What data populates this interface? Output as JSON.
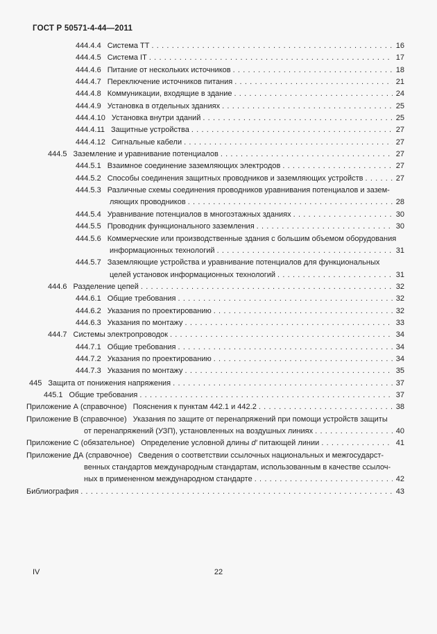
{
  "page": {
    "header": "ГОСТ Р 50571-4-44—2011",
    "footer_left": "IV",
    "footer_center": "22"
  },
  "colors": {
    "background": "#f7f7f7",
    "text": "#222222"
  },
  "toc": {
    "entries": [
      {
        "label": "444.4.4",
        "lines": [
          "Система ТТ"
        ],
        "page": "16",
        "indent": "l2",
        "cont": "c2"
      },
      {
        "label": "444.4.5",
        "lines": [
          "Система IT"
        ],
        "page": "17",
        "indent": "l2",
        "cont": "c2"
      },
      {
        "label": "444.4.6",
        "lines": [
          "Питание от нескольких источников"
        ],
        "page": "18",
        "indent": "l2",
        "cont": "c2"
      },
      {
        "label": "444.4.7",
        "lines": [
          "Переключение источников питания"
        ],
        "page": "21",
        "indent": "l2",
        "cont": "c2"
      },
      {
        "label": "444.4.8",
        "lines": [
          "Коммуникации, входящие в здание"
        ],
        "page": "24",
        "indent": "l2",
        "cont": "c2"
      },
      {
        "label": "444.4.9",
        "lines": [
          "Установка в отдельных зданиях"
        ],
        "page": "25",
        "indent": "l2",
        "cont": "c2"
      },
      {
        "label": "444.4.10",
        "lines": [
          "Установка внутри зданий"
        ],
        "page": "25",
        "indent": "l2",
        "cont": "c2"
      },
      {
        "label": "444.4.11",
        "lines": [
          "Защитные устройства"
        ],
        "page": "27",
        "indent": "l2",
        "cont": "c2"
      },
      {
        "label": "444.4.12",
        "lines": [
          "Сигнальные кабели"
        ],
        "page": "27",
        "indent": "l2",
        "cont": "c2"
      },
      {
        "label": "444.5",
        "lines": [
          "Заземление и уравнивание потенциалов"
        ],
        "page": "27",
        "indent": "l1",
        "cont": "c2"
      },
      {
        "label": "444.5.1",
        "lines": [
          "Взаимное соединение заземляющих электродов"
        ],
        "page": "27",
        "indent": "l2",
        "cont": "c2"
      },
      {
        "label": "444.5.2",
        "lines": [
          "Способы соединения защитных проводников и заземляющих устройств"
        ],
        "page": "27",
        "indent": "l2",
        "cont": "c2"
      },
      {
        "label": "444.5.3",
        "lines": [
          "Различные схемы соединения проводников уравнивания потенциалов и зазем-",
          "ляющих проводников"
        ],
        "page": "28",
        "indent": "l2",
        "cont": "c2"
      },
      {
        "label": "444.5.4",
        "lines": [
          "Уравнивание потенциалов в многоэтажных зданиях"
        ],
        "page": "30",
        "indent": "l2",
        "cont": "c2"
      },
      {
        "label": "444.5.5",
        "lines": [
          "Проводник функционального заземления"
        ],
        "page": "30",
        "indent": "l2",
        "cont": "c2"
      },
      {
        "label": "444.5.6",
        "lines": [
          "Коммерческие или производственные здания с большим объемом оборудования",
          "информационных технологий"
        ],
        "page": "31",
        "indent": "l2",
        "cont": "c2"
      },
      {
        "label": "444.5.7",
        "lines": [
          "Заземляющие устройства и уравнивание потенциалов для функциональных",
          "целей установок информационных технологий"
        ],
        "page": "31",
        "indent": "l2",
        "cont": "c2"
      },
      {
        "label": "444.6",
        "lines": [
          "Разделение цепей"
        ],
        "page": "32",
        "indent": "l1",
        "cont": "c2"
      },
      {
        "label": "444.6.1",
        "lines": [
          "Общие требования"
        ],
        "page": "32",
        "indent": "l2",
        "cont": "c2"
      },
      {
        "label": "444.6.2",
        "lines": [
          "Указания по проектированию"
        ],
        "page": "32",
        "indent": "l2",
        "cont": "c2"
      },
      {
        "label": "444.6.3",
        "lines": [
          "Указания по монтажу"
        ],
        "page": "33",
        "indent": "l2",
        "cont": "c2"
      },
      {
        "label": "444.7",
        "lines": [
          "Системы электропроводок"
        ],
        "page": "34",
        "indent": "l1",
        "cont": "c2"
      },
      {
        "label": "444.7.1",
        "lines": [
          "Общие требования"
        ],
        "page": "34",
        "indent": "l2",
        "cont": "c2"
      },
      {
        "label": "444.7.2",
        "lines": [
          "Указания по проектированию"
        ],
        "page": "34",
        "indent": "l2",
        "cont": "c2"
      },
      {
        "label": "444.7.3",
        "lines": [
          "Указания по монтажу"
        ],
        "page": "35",
        "indent": "l2",
        "cont": "c2"
      },
      {
        "label": "445",
        "lines": [
          "Защита от понижения напряжения"
        ],
        "page": "37",
        "indent": "l0n",
        "cont": "c2"
      },
      {
        "label": "445.1",
        "lines": [
          "Общие требования"
        ],
        "page": "37",
        "indent": "l1b",
        "cont": "c2"
      },
      {
        "label": "Приложение А (справочное)",
        "lines": [
          "Пояснения к пунктам 442.1 и 442.2"
        ],
        "page": "38",
        "indent": "l0",
        "cont": "cA"
      },
      {
        "label": "Приложение В (справочное)",
        "lines": [
          "Указания по защите от перенапряжений при помощи устройств защиты",
          "от перенапряжений (УЗП), установленных на воздушных линиях"
        ],
        "page": "40",
        "indent": "l0",
        "cont": "cA"
      },
      {
        "label": "Приложение С (обязательное)",
        "lines": [
          [
            {
              "t": "Определение условной длины "
            },
            {
              "t": "d′",
              "em": true
            },
            {
              "t": " питающей линии"
            }
          ]
        ],
        "page": "41",
        "indent": "l0",
        "cont": "cA"
      },
      {
        "label": "Приложение ДА (справочное)",
        "lines": [
          "Сведения о соответствии ссылочных национальных и межгосударст-",
          "венных стандартов международным стандартам, использованным в качестве ссылоч-",
          "ных в примененном международном стандарте"
        ],
        "page": "42",
        "indent": "l0",
        "cont": "cA"
      },
      {
        "lines": [
          "Библиография"
        ],
        "page": "43",
        "indent": "l0",
        "cont": "cA"
      }
    ]
  }
}
